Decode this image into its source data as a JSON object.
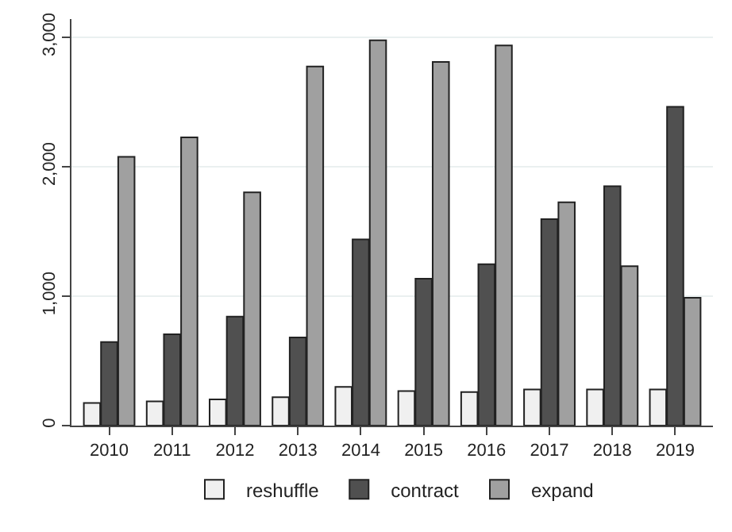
{
  "chart_data": {
    "type": "bar",
    "categories": [
      "2010",
      "2011",
      "2012",
      "2013",
      "2014",
      "2015",
      "2016",
      "2017",
      "2018",
      "2019"
    ],
    "series": [
      {
        "name": "reshuffle",
        "color": "#f0f0f0",
        "values": [
          175,
          187,
          203,
          219,
          299,
          267,
          259,
          279,
          279,
          279
        ]
      },
      {
        "name": "contract",
        "color": "#505050",
        "values": [
          645,
          705,
          841,
          681,
          1438,
          1135,
          1247,
          1594,
          1849,
          2462
        ]
      },
      {
        "name": "expand",
        "color": "#a0a0a0",
        "values": [
          2076,
          2227,
          1801,
          2773,
          2976,
          2809,
          2936,
          1725,
          1231,
          988
        ]
      }
    ],
    "ylim": [
      0,
      3140
    ],
    "yticks": [
      {
        "value": 0,
        "label": "0"
      },
      {
        "value": 1000,
        "label": "1,000"
      },
      {
        "value": 2000,
        "label": "2,000"
      },
      {
        "value": 3000,
        "label": "3,000"
      }
    ],
    "grid": "y",
    "legend": "bottom"
  }
}
